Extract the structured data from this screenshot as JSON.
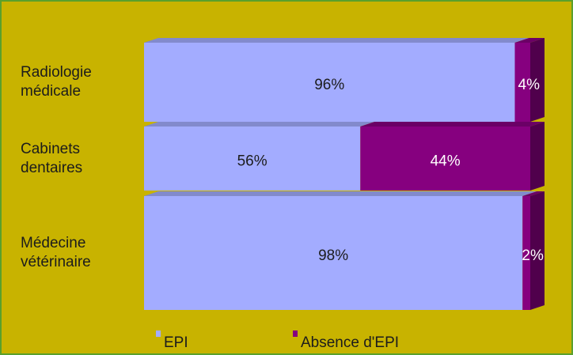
{
  "chart_data": {
    "type": "bar_stacked_horizontal",
    "categories": [
      "Radiologie médicale",
      "Cabinets dentaires",
      "Médecine vétérinaire"
    ],
    "series": [
      {
        "name": "EPI",
        "color": "#a3acff",
        "values": [
          96,
          56,
          98
        ],
        "value_labels": [
          "96%",
          "56%",
          "98%"
        ]
      },
      {
        "name": "Absence d'EPI",
        "color": "#86007f",
        "values": [
          4,
          44,
          2
        ],
        "value_labels": [
          "4%",
          "44%",
          "2%"
        ]
      }
    ],
    "xlim": [
      0,
      100
    ]
  }
}
